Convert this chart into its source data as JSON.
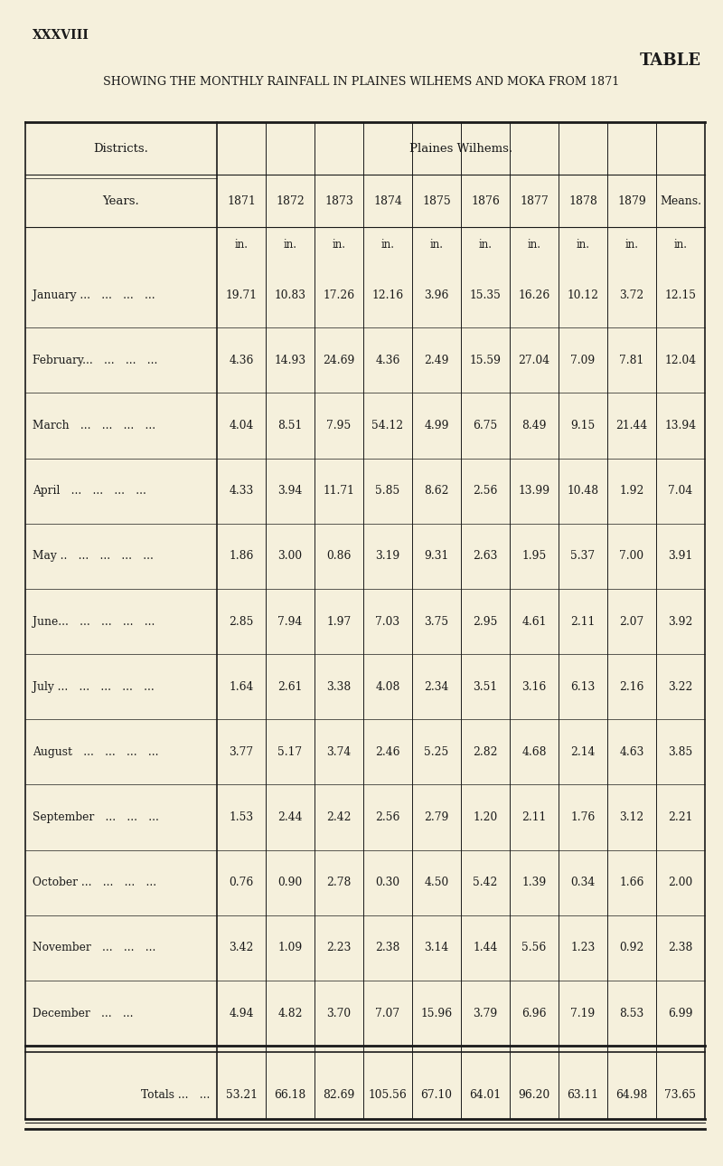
{
  "page_label": "XXXVIII",
  "title_right": "TABLE",
  "subtitle": "SHOWING THE MONTHLY RAINFALL IN PLAINES WILHEMS AND MOKA FROM 1871",
  "subtitle_bold_part": "PLAINES WILHEMS AND MOKA",
  "district_header": "Districts.",
  "region_header": "Plaines Wilhems.",
  "years_label": "Years.",
  "years": [
    "1871",
    "1872",
    "1873",
    "1874",
    "1875",
    "1876",
    "1877",
    "1878",
    "1879",
    "Means."
  ],
  "unit_row": [
    "in.",
    "in.",
    "in.",
    "in.",
    "in.",
    "in.",
    "in.",
    "in.",
    "in.",
    "in."
  ],
  "months": [
    "January ...   ...   ...   ...",
    "February...   ...   ...   ...",
    "March   ...   ...   ...   ...",
    "April   ...   ...   ...   ...",
    "May ..   ...   ...   ...   ...",
    "June...   ...   ...   ...   ...",
    "July ...   ...   ...   ...   ...",
    "August   ...   ...   ...   ...",
    "September   ...   ...   ...",
    "October ...   ...   ...   ...",
    "November   ...   ...   ...",
    "December   ...   ...   ..."
  ],
  "month_labels": [
    "January ... ... ... ...",
    "February... ... ... ...",
    "March ... ... ... ...",
    "April ... ... ... ...",
    "May .. ... ... ... ...",
    "June... ... ... ... ...",
    "July ... ... ... ... ...",
    "August ... ... ... ...",
    "September ... ... ...",
    "October ... ... ... ...",
    "November ... ... ...",
    "December ... ..."
  ],
  "data": [
    [
      19.71,
      10.83,
      17.26,
      12.16,
      3.96,
      15.35,
      16.26,
      10.12,
      3.72,
      12.15
    ],
    [
      4.36,
      14.93,
      24.69,
      4.36,
      2.49,
      15.59,
      27.04,
      7.09,
      7.81,
      12.04
    ],
    [
      4.04,
      8.51,
      7.95,
      54.12,
      4.99,
      6.75,
      8.49,
      9.15,
      21.44,
      13.94
    ],
    [
      4.33,
      3.94,
      11.71,
      5.85,
      8.62,
      2.56,
      13.99,
      10.48,
      1.92,
      7.04
    ],
    [
      1.86,
      3.0,
      0.86,
      3.19,
      9.31,
      2.63,
      1.95,
      5.37,
      7.0,
      3.91
    ],
    [
      2.85,
      7.94,
      1.97,
      7.03,
      3.75,
      2.95,
      4.61,
      2.11,
      2.07,
      3.92
    ],
    [
      1.64,
      2.61,
      3.38,
      4.08,
      2.34,
      3.51,
      3.16,
      6.13,
      2.16,
      3.22
    ],
    [
      3.77,
      5.17,
      3.74,
      2.46,
      5.25,
      2.82,
      4.68,
      2.14,
      4.63,
      3.85
    ],
    [
      1.53,
      2.44,
      2.42,
      2.56,
      2.79,
      1.2,
      2.11,
      1.76,
      3.12,
      2.21
    ],
    [
      0.76,
      0.9,
      2.78,
      0.3,
      4.5,
      5.42,
      1.39,
      0.34,
      1.66,
      2.0
    ],
    [
      3.42,
      1.09,
      2.23,
      2.38,
      3.14,
      1.44,
      5.56,
      1.23,
      0.92,
      2.38
    ],
    [
      4.94,
      4.82,
      3.7,
      7.07,
      15.96,
      3.79,
      6.96,
      7.19,
      8.53,
      6.99
    ]
  ],
  "totals": [
    53.21,
    66.18,
    82.69,
    105.56,
    67.1,
    64.01,
    96.2,
    63.11,
    64.98,
    73.65
  ],
  "totals_label": "Totals ...   ...",
  "bg_color": "#f5f0dc",
  "text_color": "#1a1a1a",
  "line_color": "#1a1a1a"
}
